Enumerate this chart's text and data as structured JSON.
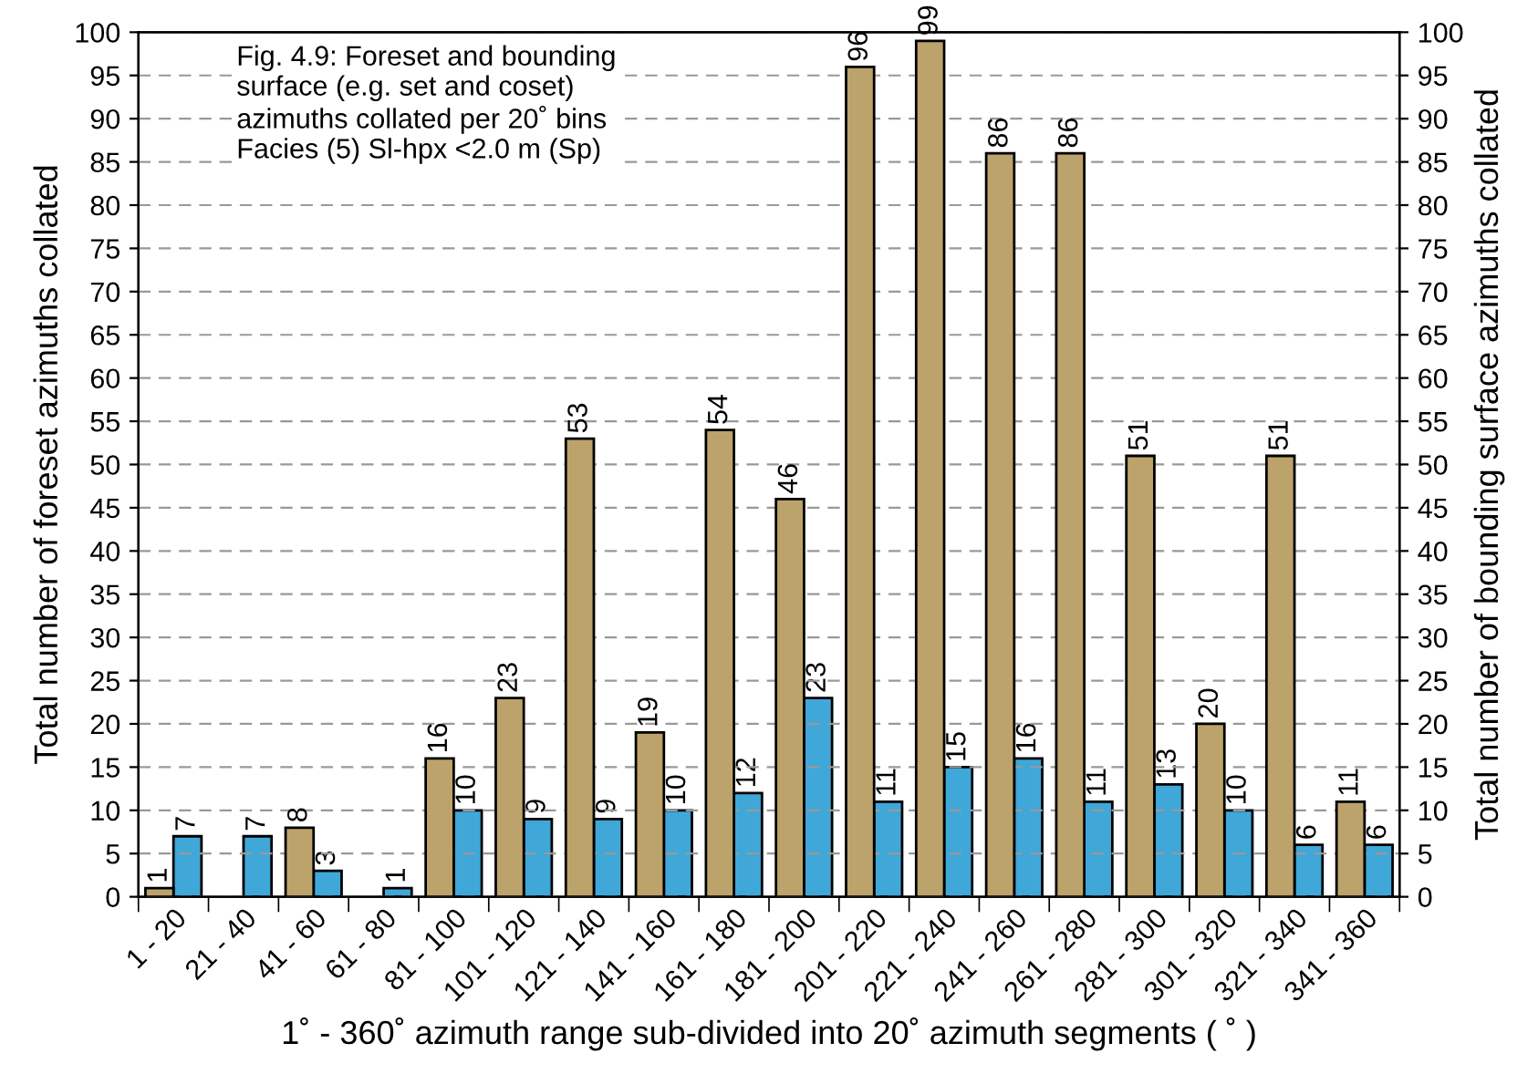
{
  "chart_data": {
    "type": "bar",
    "xlabel": "1˚ - 360˚ azimuth range sub-divided into 20˚ azimuth segments ( ˚ )",
    "ylabel": "Total number of foreset azimuths collated",
    "y2label": "Total number of bounding surface azimuths collated",
    "annotations": [
      "Fig. 4.9: Foreset and bounding\nsurface (e.g. set and coset)\nazimuths collated per 20˚ bins\nFacies (5) Sl-hpx <2.0 m (Sp)"
    ],
    "categories": [
      "1 - 20",
      "21 - 40",
      "41 - 60",
      "61 - 80",
      "81 - 100",
      "101 - 120",
      "121 - 140",
      "141 - 160",
      "161 - 180",
      "181 - 200",
      "201 - 220",
      "221 - 240",
      "241 - 260",
      "261 - 280",
      "281 - 300",
      "301 - 320",
      "321 - 340",
      "341 - 360"
    ],
    "series": [
      {
        "color": "#bca36b",
        "values": [
          1,
          null,
          8,
          null,
          16,
          23,
          53,
          19,
          54,
          46,
          96,
          99,
          86,
          86,
          51,
          20,
          51,
          11
        ]
      },
      {
        "color": "#40a7d9",
        "axis": "y2",
        "values": [
          7,
          7,
          3,
          1,
          10,
          9,
          9,
          10,
          12,
          23,
          11,
          15,
          16,
          11,
          13,
          10,
          6,
          6
        ]
      }
    ],
    "ylim": [
      0,
      100
    ],
    "yticks": [
      0,
      5,
      10,
      15,
      20,
      25,
      30,
      35,
      40,
      45,
      50,
      55,
      60,
      65,
      70,
      75,
      80,
      85,
      90,
      95,
      100
    ],
    "y2lim": [
      0,
      100
    ],
    "y2ticks": [
      0,
      5,
      10,
      15,
      20,
      25,
      30,
      35,
      40,
      45,
      50,
      55,
      60,
      65,
      70,
      75,
      80,
      85,
      90,
      95,
      100
    ],
    "grid": "y",
    "data_labels": true,
    "line_style": "dashed"
  }
}
